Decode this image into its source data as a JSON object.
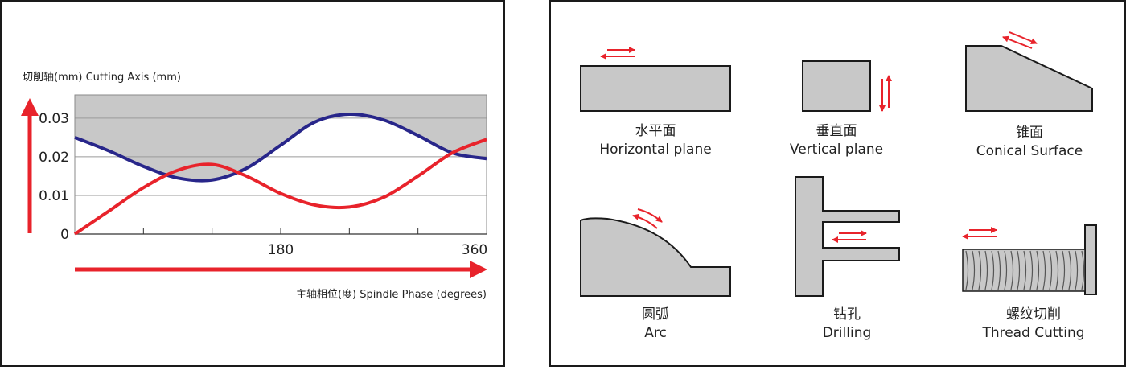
{
  "chart_data": {
    "type": "line",
    "y_axis_label": "切削轴(mm)  Cutting Axis (mm)",
    "x_axis_label": "主轴相位(度) Spindle Phase (degrees)",
    "y_ticks": [
      "0",
      "0.01",
      "0.02",
      "0.03"
    ],
    "x_ticks": [
      "180",
      "360"
    ],
    "ylim": [
      0,
      0.036
    ],
    "xlim": [
      0,
      360
    ],
    "grid": true,
    "series": [
      {
        "color": "#28268a",
        "x": [
          0,
          30,
          60,
          90,
          120,
          150,
          180,
          210,
          240,
          270,
          300,
          330,
          360
        ],
        "values": [
          0.025,
          0.0215,
          0.0175,
          0.0145,
          0.014,
          0.017,
          0.023,
          0.029,
          0.031,
          0.0295,
          0.0255,
          0.021,
          0.0195
        ]
      },
      {
        "color": "#e8232b",
        "x": [
          0,
          30,
          60,
          90,
          120,
          150,
          180,
          210,
          240,
          270,
          300,
          330,
          360
        ],
        "values": [
          0,
          0.006,
          0.012,
          0.0165,
          0.018,
          0.015,
          0.0105,
          0.0075,
          0.007,
          0.0095,
          0.015,
          0.021,
          0.0245
        ]
      }
    ],
    "shaded_region": "area above blue curve up to 0.036"
  },
  "colors": {
    "red": "#e8232b",
    "blue": "#28268a",
    "gray_fill": "#c8c8c8",
    "outline": "#1a1a1a"
  },
  "shapes": [
    {
      "key": "horizontal",
      "zh": "水平面",
      "en": "Horizontal plane"
    },
    {
      "key": "vertical",
      "zh": "垂直面",
      "en": "Vertical plane"
    },
    {
      "key": "conical",
      "zh": "锥面",
      "en": "Conical Surface"
    },
    {
      "key": "arc",
      "zh": "圆弧",
      "en": "Arc"
    },
    {
      "key": "drilling",
      "zh": "钻孔",
      "en": "Drilling"
    },
    {
      "key": "thread",
      "zh": "螺纹切削",
      "en": "Thread Cutting"
    }
  ]
}
